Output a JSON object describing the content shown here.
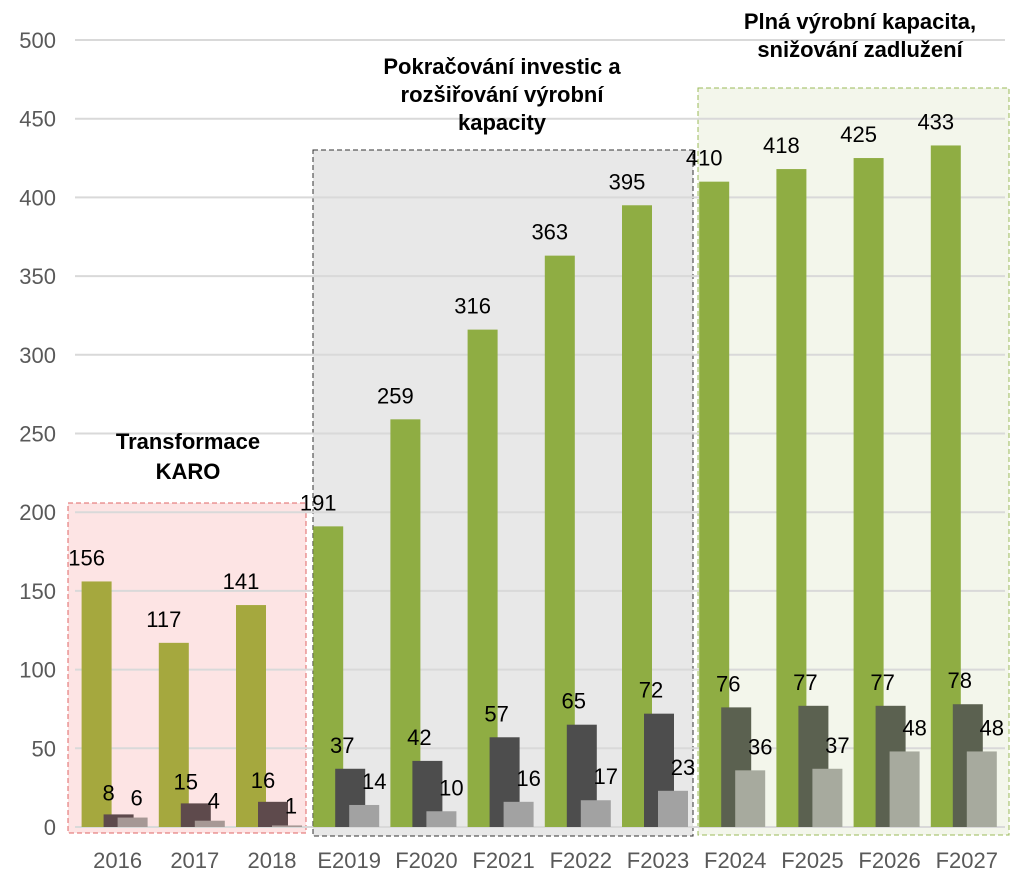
{
  "chart_data": {
    "type": "bar",
    "categories": [
      "2016",
      "2017",
      "2018",
      "E2019",
      "F2020",
      "F2021",
      "F2022",
      "F2023",
      "F2024",
      "F2025",
      "F2026",
      "F2027"
    ],
    "series": [
      {
        "values": [
          156,
          117,
          141,
          191,
          259,
          316,
          363,
          395,
          410,
          418,
          425,
          433
        ]
      },
      {
        "values": [
          8,
          15,
          16,
          37,
          42,
          57,
          65,
          72,
          76,
          77,
          77,
          78
        ]
      },
      {
        "values": [
          6,
          4,
          1,
          14,
          10,
          16,
          17,
          23,
          36,
          37,
          48,
          48
        ]
      }
    ],
    "data_labels": [
      [
        "156",
        "117",
        "141",
        "191",
        "259",
        "316",
        "363",
        "395",
        "410",
        "418",
        "425",
        "433"
      ],
      [
        "8",
        "15",
        "16",
        "37",
        "42",
        "57",
        "65",
        "72",
        "76",
        "77",
        "77",
        "78"
      ],
      [
        "6",
        "4",
        "1",
        "14",
        "10",
        "16",
        "17",
        "23",
        "36",
        "37",
        "48",
        "48"
      ]
    ],
    "y_ticks": [
      "0",
      "50",
      "100",
      "150",
      "200",
      "250",
      "300",
      "350",
      "400",
      "450",
      "500"
    ],
    "ylim": [
      0,
      500
    ],
    "grid": true,
    "phases": [
      {
        "title_lines": [
          "Transformace",
          "KARO"
        ],
        "from": 0,
        "to": 2,
        "fill": "#fde4e4",
        "stroke": "#e06666"
      },
      {
        "title_lines": [
          "Pokračování investic a",
          "rozšiřování výrobní",
          "kapacity"
        ],
        "from": 3,
        "to": 7,
        "fill": "#e8e8e8",
        "stroke": "#333333"
      },
      {
        "title_lines": [
          "Plná výrobní kapacita,",
          "snižování zadlužení"
        ],
        "from": 8,
        "to": 11,
        "fill": "#f3f6eb",
        "stroke": "#9bbb59"
      }
    ],
    "colors": {
      "s0": [
        "#a5a83e",
        "#a5a83e",
        "#a5a83e",
        "#8fad43",
        "#8fad43",
        "#8fad43",
        "#8fad43",
        "#8fad43",
        "#8fad43",
        "#8fad43",
        "#8fad43",
        "#8fad43"
      ],
      "s1": [
        "#5e4a4c",
        "#5e4a4c",
        "#5e4a4c",
        "#4d4d4d",
        "#4d4d4d",
        "#4d4d4d",
        "#4d4d4d",
        "#4d4d4d",
        "#5b6150",
        "#5b6150",
        "#5b6150",
        "#5b6150"
      ],
      "s2": [
        "#a69895",
        "#a69895",
        "#a69895",
        "#a2a2a2",
        "#a2a2a2",
        "#a2a2a2",
        "#a2a2a2",
        "#a2a2a2",
        "#a7aa9e",
        "#a7aa9e",
        "#a7aa9e",
        "#a7aa9e"
      ],
      "grid": "#d9d9d9",
      "axis_text": "#595959"
    }
  }
}
